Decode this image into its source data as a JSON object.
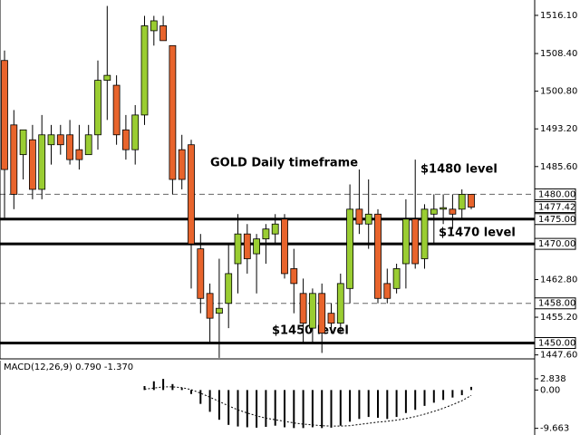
{
  "chart_data": [
    {
      "type": "candlestick",
      "annotations": [
        "GOLD Daily timeframe",
        "$1480 level",
        "$1470 level",
        "$1450 level"
      ],
      "up_color": "#9acd32",
      "down_color": "#e8642c",
      "open": [
        1507,
        1494,
        1488,
        1491,
        1481,
        1490,
        1492,
        1492,
        1489,
        1488,
        1492,
        1503,
        1502,
        1493,
        1489,
        1496,
        1513,
        1514,
        1510,
        1489,
        1490,
        1469,
        1460,
        1456,
        1458,
        1466,
        1472,
        1468,
        1471,
        1472,
        1475,
        1465,
        1460,
        1453,
        1460,
        1456,
        1454,
        1461,
        1477,
        1474,
        1476,
        1462,
        1461,
        1466,
        1475,
        1467,
        1476,
        1477,
        1477,
        1477,
        1480
      ],
      "high": [
        1509,
        1497,
        1493,
        1494,
        1496,
        1494,
        1494,
        1495,
        1494,
        1494,
        1507,
        1518,
        1504,
        1496,
        1498,
        1516,
        1516,
        1516,
        1510,
        1492,
        1491,
        1472,
        1462,
        1467,
        1470,
        1476,
        1474,
        1472,
        1474,
        1476,
        1476,
        1469,
        1463,
        1461,
        1462,
        1458,
        1464,
        1482,
        1485,
        1483,
        1477,
        1465,
        1466,
        1479,
        1487,
        1478,
        1480,
        1480,
        1480,
        1481,
        1480
      ],
      "low": [
        1475,
        1477,
        1483,
        1479,
        1479,
        1486,
        1488,
        1486,
        1485,
        1488,
        1489,
        1495,
        1490,
        1487,
        1486,
        1494,
        1510,
        1511,
        1480,
        1481,
        1461,
        1456,
        1450,
        1447,
        1453,
        1460,
        1464,
        1460,
        1466,
        1470,
        1463,
        1456,
        1450,
        1450,
        1448,
        1452,
        1452,
        1458,
        1472,
        1469,
        1458,
        1458,
        1460,
        1461,
        1465,
        1465,
        1470,
        1474,
        1473,
        1475,
        1477
      ],
      "close": [
        1485,
        1480,
        1493,
        1481,
        1492,
        1492,
        1490,
        1487,
        1487,
        1492,
        1503,
        1504,
        1492,
        1489,
        1496,
        1514,
        1515,
        1511,
        1483,
        1483,
        1470,
        1459,
        1455,
        1457,
        1464,
        1472,
        1467,
        1471,
        1473,
        1474,
        1464,
        1462,
        1454,
        1460,
        1452,
        1454,
        1462,
        1477,
        1474,
        1476,
        1459,
        1459,
        1465,
        1475,
        1466,
        1477,
        1477,
        1477.3,
        1476,
        1480,
        1477.42
      ],
      "ylim": [
        1446.8,
        1519.2
      ],
      "yticks": [
        {
          "value": 1516.1,
          "label": "1516.10"
        },
        {
          "value": 1508.4,
          "label": "1508.40"
        },
        {
          "value": 1500.8,
          "label": "1500.80"
        },
        {
          "value": 1493.2,
          "label": "1493.20"
        },
        {
          "value": 1485.6,
          "label": "1485.60"
        },
        {
          "value": 1462.8,
          "label": "1462.80"
        },
        {
          "value": 1455.2,
          "label": "1455.20"
        },
        {
          "value": 1447.6,
          "label": "1447.60"
        }
      ],
      "levels": [
        {
          "value": 1480,
          "label": "1480.00",
          "style": "dashed"
        },
        {
          "value": 1477.42,
          "label": "1477.42",
          "style": "marker"
        },
        {
          "value": 1475,
          "label": "1475.00",
          "style": "solid"
        },
        {
          "value": 1470,
          "label": "1470.00",
          "style": "solid"
        },
        {
          "value": 1458,
          "label": "1458.00",
          "style": "dashed"
        },
        {
          "value": 1450,
          "label": "1450.00",
          "style": "solid"
        }
      ]
    },
    {
      "type": "macd",
      "label": "MACD(12,26,9) 0.790 -1.370",
      "histogram": [
        null,
        null,
        null,
        null,
        null,
        null,
        null,
        null,
        null,
        null,
        null,
        null,
        null,
        null,
        null,
        1.0,
        2.2,
        2.8,
        1.5,
        0.5,
        -1.0,
        -3.5,
        -5.5,
        -7.5,
        -8.8,
        -9.2,
        -9.4,
        -9.5,
        -9.3,
        -9.0,
        -9.4,
        -9.6,
        -9.6,
        -9.4,
        -9.6,
        -9.5,
        -9.0,
        -8.0,
        -7.3,
        -6.8,
        -7.0,
        -7.3,
        -6.8,
        -5.8,
        -5.0,
        -4.0,
        -3.2,
        -2.5,
        -1.9,
        -1.3,
        0.79
      ],
      "signal": [
        null,
        null,
        null,
        null,
        null,
        null,
        null,
        null,
        null,
        null,
        null,
        null,
        null,
        null,
        null,
        0.2,
        0.5,
        0.8,
        0.8,
        0.6,
        0.1,
        -0.8,
        -1.8,
        -2.9,
        -4.0,
        -5.0,
        -5.8,
        -6.5,
        -7.1,
        -7.5,
        -7.9,
        -8.3,
        -8.6,
        -8.8,
        -9.0,
        -9.1,
        -9.1,
        -9.0,
        -8.7,
        -8.4,
        -8.1,
        -7.9,
        -7.6,
        -7.2,
        -6.7,
        -6.1,
        -5.4,
        -4.6,
        -3.7,
        -2.7,
        -1.37
      ],
      "color": "#000000",
      "ylim": [
        -11.35,
        7.4
      ],
      "yticks": [
        2.838,
        {
          "value": 0,
          "label": "0.00"
        },
        -9.663
      ]
    }
  ]
}
